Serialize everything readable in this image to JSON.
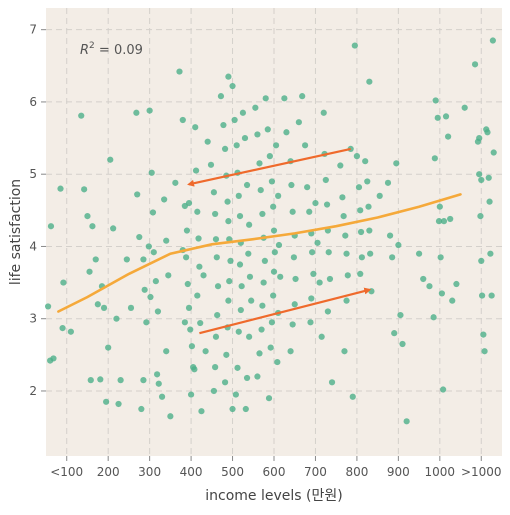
{
  "chart_data": {
    "type": "scatter",
    "title": "",
    "xlabel": "income levels (만원)",
    "ylabel": "life satisfaction",
    "x_categories": [
      "<100",
      "200",
      "300",
      "400",
      "500",
      "600",
      "700",
      "800",
      "900",
      "1000",
      ">1000"
    ],
    "xlim": [
      50,
      1150
    ],
    "ylim": [
      1.1,
      7.3
    ],
    "y_ticks": [
      2,
      3,
      4,
      5,
      6,
      7
    ],
    "grid": true,
    "colors": {
      "background": "#f3ede6",
      "points": "#4caf8a",
      "trend": "#f5a93a",
      "arrows": "#ef6a2c"
    },
    "annotation": {
      "label": "R",
      "superscript": "2",
      "value": " = 0.09"
    },
    "trend_line": {
      "x": [
        80,
        150,
        250,
        350,
        450,
        550,
        650,
        750,
        850,
        950,
        1050
      ],
      "y": [
        3.1,
        3.3,
        3.62,
        3.9,
        4.03,
        4.1,
        4.18,
        4.28,
        4.4,
        4.55,
        4.72
      ]
    },
    "arrows": [
      {
        "from": [
          785,
          5.35
        ],
        "to": [
          395,
          4.86
        ]
      },
      {
        "from": [
          420,
          2.8
        ],
        "to": [
          830,
          3.4
        ]
      }
    ],
    "points": [
      [
        55,
        3.17
      ],
      [
        60,
        2.42
      ],
      [
        68,
        2.45
      ],
      [
        62,
        4.28
      ],
      [
        85,
        4.8
      ],
      [
        92,
        3.5
      ],
      [
        90,
        2.87
      ],
      [
        110,
        2.82
      ],
      [
        135,
        5.81
      ],
      [
        142,
        4.79
      ],
      [
        150,
        4.42
      ],
      [
        155,
        3.65
      ],
      [
        162,
        4.28
      ],
      [
        170,
        3.82
      ],
      [
        175,
        3.2
      ],
      [
        158,
        2.15
      ],
      [
        181,
        2.16
      ],
      [
        195,
        1.85
      ],
      [
        190,
        3.15
      ],
      [
        205,
        5.2
      ],
      [
        212,
        4.25
      ],
      [
        220,
        3.0
      ],
      [
        230,
        2.15
      ],
      [
        245,
        3.82
      ],
      [
        185,
        3.45
      ],
      [
        200,
        2.6
      ],
      [
        225,
        1.82
      ],
      [
        255,
        3.15
      ],
      [
        268,
        5.85
      ],
      [
        270,
        4.72
      ],
      [
        275,
        4.13
      ],
      [
        285,
        3.82
      ],
      [
        288,
        3.4
      ],
      [
        292,
        2.95
      ],
      [
        285,
        2.15
      ],
      [
        280,
        1.75
      ],
      [
        300,
        5.88
      ],
      [
        305,
        5.02
      ],
      [
        308,
        4.47
      ],
      [
        310,
        3.92
      ],
      [
        315,
        3.52
      ],
      [
        320,
        3.1
      ],
      [
        318,
        2.23
      ],
      [
        322,
        2.1
      ],
      [
        330,
        1.92
      ],
      [
        298,
        4.0
      ],
      [
        302,
        3.3
      ],
      [
        335,
        4.65
      ],
      [
        340,
        4.08
      ],
      [
        345,
        3.6
      ],
      [
        340,
        2.55
      ],
      [
        350,
        1.65
      ],
      [
        362,
        4.88
      ],
      [
        372,
        6.42
      ],
      [
        380,
        5.75
      ],
      [
        385,
        4.56
      ],
      [
        390,
        4.22
      ],
      [
        388,
        3.85
      ],
      [
        392,
        3.48
      ],
      [
        395,
        3.15
      ],
      [
        398,
        2.85
      ],
      [
        402,
        2.62
      ],
      [
        405,
        2.33
      ],
      [
        400,
        1.95
      ],
      [
        410,
        5.65
      ],
      [
        412,
        5.05
      ],
      [
        415,
        4.48
      ],
      [
        418,
        4.11
      ],
      [
        420,
        3.72
      ],
      [
        415,
        3.32
      ],
      [
        422,
        2.94
      ],
      [
        408,
        2.3
      ],
      [
        425,
        1.72
      ],
      [
        380,
        3.95
      ],
      [
        385,
        2.95
      ],
      [
        395,
        4.6
      ],
      [
        430,
        3.6
      ],
      [
        435,
        2.55
      ],
      [
        440,
        5.45
      ],
      [
        448,
        5.13
      ],
      [
        455,
        4.75
      ],
      [
        458,
        4.45
      ],
      [
        460,
        4.1
      ],
      [
        462,
        3.85
      ],
      [
        465,
        3.45
      ],
      [
        463,
        3.05
      ],
      [
        460,
        2.75
      ],
      [
        458,
        2.33
      ],
      [
        455,
        2.0
      ],
      [
        472,
        6.08
      ],
      [
        478,
        5.68
      ],
      [
        482,
        5.35
      ],
      [
        485,
        4.98
      ],
      [
        488,
        4.62
      ],
      [
        490,
        4.35
      ],
      [
        492,
        4.1
      ],
      [
        495,
        3.8
      ],
      [
        492,
        3.52
      ],
      [
        490,
        3.25
      ],
      [
        488,
        2.88
      ],
      [
        485,
        2.5
      ],
      [
        482,
        2.12
      ],
      [
        490,
        6.35
      ],
      [
        500,
        6.22
      ],
      [
        505,
        5.75
      ],
      [
        510,
        5.4
      ],
      [
        512,
        5.02
      ],
      [
        515,
        4.7
      ],
      [
        518,
        4.42
      ],
      [
        520,
        4.05
      ],
      [
        518,
        3.75
      ],
      [
        522,
        3.45
      ],
      [
        520,
        3.12
      ],
      [
        515,
        2.82
      ],
      [
        512,
        2.32
      ],
      [
        508,
        1.95
      ],
      [
        500,
        1.75
      ],
      [
        525,
        5.85
      ],
      [
        530,
        5.5
      ],
      [
        535,
        4.85
      ],
      [
        540,
        4.3
      ],
      [
        538,
        3.9
      ],
      [
        542,
        3.58
      ],
      [
        545,
        3.25
      ],
      [
        540,
        2.75
      ],
      [
        535,
        2.18
      ],
      [
        532,
        1.75
      ],
      [
        555,
        5.92
      ],
      [
        560,
        5.55
      ],
      [
        565,
        5.15
      ],
      [
        568,
        4.78
      ],
      [
        572,
        4.45
      ],
      [
        575,
        4.12
      ],
      [
        578,
        3.8
      ],
      [
        575,
        3.5
      ],
      [
        572,
        3.18
      ],
      [
        570,
        2.85
      ],
      [
        565,
        2.52
      ],
      [
        560,
        2.2
      ],
      [
        580,
        6.05
      ],
      [
        585,
        5.62
      ],
      [
        590,
        5.25
      ],
      [
        595,
        4.9
      ],
      [
        598,
        4.55
      ],
      [
        600,
        4.22
      ],
      [
        602,
        3.92
      ],
      [
        600,
        3.65
      ],
      [
        598,
        3.32
      ],
      [
        595,
        2.95
      ],
      [
        592,
        2.6
      ],
      [
        588,
        1.9
      ],
      [
        605,
        5.4
      ],
      [
        610,
        4.7
      ],
      [
        612,
        4.02
      ],
      [
        615,
        3.58
      ],
      [
        610,
        3.08
      ],
      [
        608,
        2.4
      ],
      [
        625,
        6.05
      ],
      [
        630,
        5.58
      ],
      [
        640,
        5.18
      ],
      [
        642,
        4.85
      ],
      [
        645,
        4.48
      ],
      [
        650,
        4.15
      ],
      [
        648,
        3.85
      ],
      [
        652,
        3.55
      ],
      [
        650,
        3.2
      ],
      [
        645,
        2.92
      ],
      [
        640,
        2.55
      ],
      [
        660,
        5.72
      ],
      [
        668,
        6.08
      ],
      [
        675,
        5.4
      ],
      [
        680,
        4.82
      ],
      [
        685,
        4.48
      ],
      [
        690,
        4.18
      ],
      [
        692,
        3.92
      ],
      [
        695,
        3.62
      ],
      [
        690,
        3.28
      ],
      [
        688,
        2.95
      ],
      [
        700,
        4.6
      ],
      [
        705,
        4.05
      ],
      [
        710,
        3.5
      ],
      [
        715,
        2.75
      ],
      [
        720,
        5.85
      ],
      [
        722,
        5.28
      ],
      [
        725,
        4.92
      ],
      [
        728,
        4.58
      ],
      [
        730,
        4.22
      ],
      [
        732,
        3.92
      ],
      [
        735,
        3.55
      ],
      [
        730,
        3.1
      ],
      [
        740,
        2.12
      ],
      [
        760,
        5.12
      ],
      [
        765,
        4.68
      ],
      [
        768,
        4.42
      ],
      [
        772,
        4.15
      ],
      [
        775,
        3.9
      ],
      [
        778,
        3.6
      ],
      [
        775,
        3.25
      ],
      [
        770,
        2.55
      ],
      [
        785,
        5.35
      ],
      [
        795,
        6.78
      ],
      [
        800,
        5.25
      ],
      [
        805,
        4.82
      ],
      [
        808,
        4.5
      ],
      [
        810,
        4.2
      ],
      [
        812,
        3.85
      ],
      [
        808,
        3.62
      ],
      [
        790,
        1.92
      ],
      [
        820,
        5.18
      ],
      [
        825,
        4.9
      ],
      [
        828,
        4.55
      ],
      [
        830,
        4.22
      ],
      [
        832,
        3.9
      ],
      [
        835,
        3.38
      ],
      [
        830,
        6.28
      ],
      [
        855,
        4.7
      ],
      [
        875,
        4.88
      ],
      [
        880,
        4.15
      ],
      [
        885,
        3.85
      ],
      [
        890,
        2.8
      ],
      [
        895,
        5.15
      ],
      [
        900,
        4.02
      ],
      [
        905,
        3.05
      ],
      [
        910,
        2.65
      ],
      [
        920,
        1.58
      ],
      [
        950,
        3.9
      ],
      [
        960,
        3.55
      ],
      [
        975,
        3.45
      ],
      [
        985,
        3.02
      ],
      [
        988,
        5.22
      ],
      [
        990,
        6.02
      ],
      [
        995,
        5.78
      ],
      [
        998,
        4.35
      ],
      [
        1000,
        4.55
      ],
      [
        1002,
        3.85
      ],
      [
        1005,
        3.35
      ],
      [
        1008,
        2.02
      ],
      [
        1010,
        4.35
      ],
      [
        1015,
        5.8
      ],
      [
        1020,
        5.52
      ],
      [
        1025,
        4.38
      ],
      [
        1030,
        3.25
      ],
      [
        1040,
        3.48
      ],
      [
        1060,
        5.92
      ],
      [
        1085,
        6.52
      ],
      [
        1092,
        5.45
      ],
      [
        1095,
        5.0
      ],
      [
        1098,
        4.42
      ],
      [
        1100,
        3.8
      ],
      [
        1102,
        3.32
      ],
      [
        1105,
        2.78
      ],
      [
        1108,
        2.55
      ],
      [
        1112,
        5.62
      ],
      [
        1115,
        5.58
      ],
      [
        1118,
        4.95
      ],
      [
        1120,
        4.62
      ],
      [
        1122,
        3.9
      ],
      [
        1125,
        3.32
      ],
      [
        1128,
        6.85
      ],
      [
        1130,
        5.3
      ],
      [
        1100,
        4.92
      ],
      [
        1095,
        5.5
      ]
    ]
  }
}
